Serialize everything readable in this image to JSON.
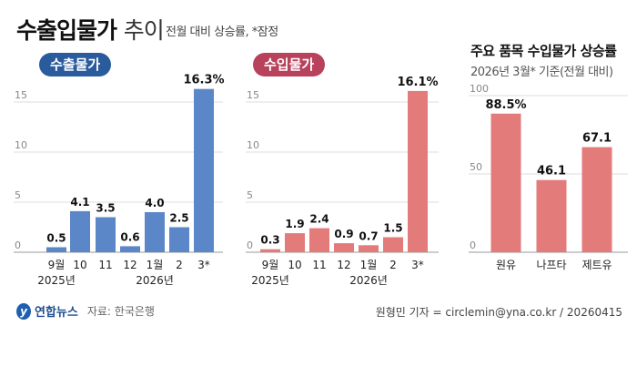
{
  "header": {
    "title_bold": "수출입물가",
    "title_light": "추이",
    "subtitle": "전월 대비 상승률, *잠정"
  },
  "footer": {
    "logo": "연합뉴스",
    "source": "자료: 한국은행",
    "credit": "원형민 기자 = circlemin@yna.co.kr / 20260415"
  },
  "colors": {
    "export": "#5b87c9",
    "import": "#e37b7b",
    "export_pill": "#2a5b9c",
    "import_pill": "#b8415c"
  },
  "chart_data": [
    {
      "type": "bar",
      "title": "수출물가",
      "categories": [
        "9월",
        "10",
        "11",
        "12",
        "1월",
        "2",
        "3*"
      ],
      "year_labels": [
        "2025년",
        "2026년"
      ],
      "values": [
        0.5,
        4.1,
        3.5,
        0.6,
        4.0,
        2.5,
        16.3
      ],
      "value_labels": [
        "0.5",
        "4.1",
        "3.5",
        "0.6",
        "4.0",
        "2.5",
        "16.3%"
      ],
      "yticks": [
        0,
        5,
        10,
        15
      ],
      "ylim": [
        0,
        17
      ]
    },
    {
      "type": "bar",
      "title": "수입물가",
      "categories": [
        "9월",
        "10",
        "11",
        "12",
        "1월",
        "2",
        "3*"
      ],
      "year_labels": [
        "2025년",
        "2026년"
      ],
      "values": [
        0.3,
        1.9,
        2.4,
        0.9,
        0.7,
        1.5,
        16.1
      ],
      "value_labels": [
        "0.3",
        "1.9",
        "2.4",
        "0.9",
        "0.7",
        "1.5",
        "16.1%"
      ],
      "yticks": [
        0,
        5,
        10,
        15
      ],
      "ylim": [
        0,
        17
      ]
    },
    {
      "type": "bar",
      "title": "주요 품목 수입물가 상승률",
      "subtitle": "2026년 3월* 기준(전월 대비)",
      "categories": [
        "원유",
        "나프타",
        "제트유"
      ],
      "values": [
        88.5,
        46.1,
        67.1
      ],
      "value_labels": [
        "88.5%",
        "46.1",
        "67.1"
      ],
      "yticks": [
        0,
        50,
        100
      ],
      "ylim": [
        0,
        100
      ]
    }
  ]
}
